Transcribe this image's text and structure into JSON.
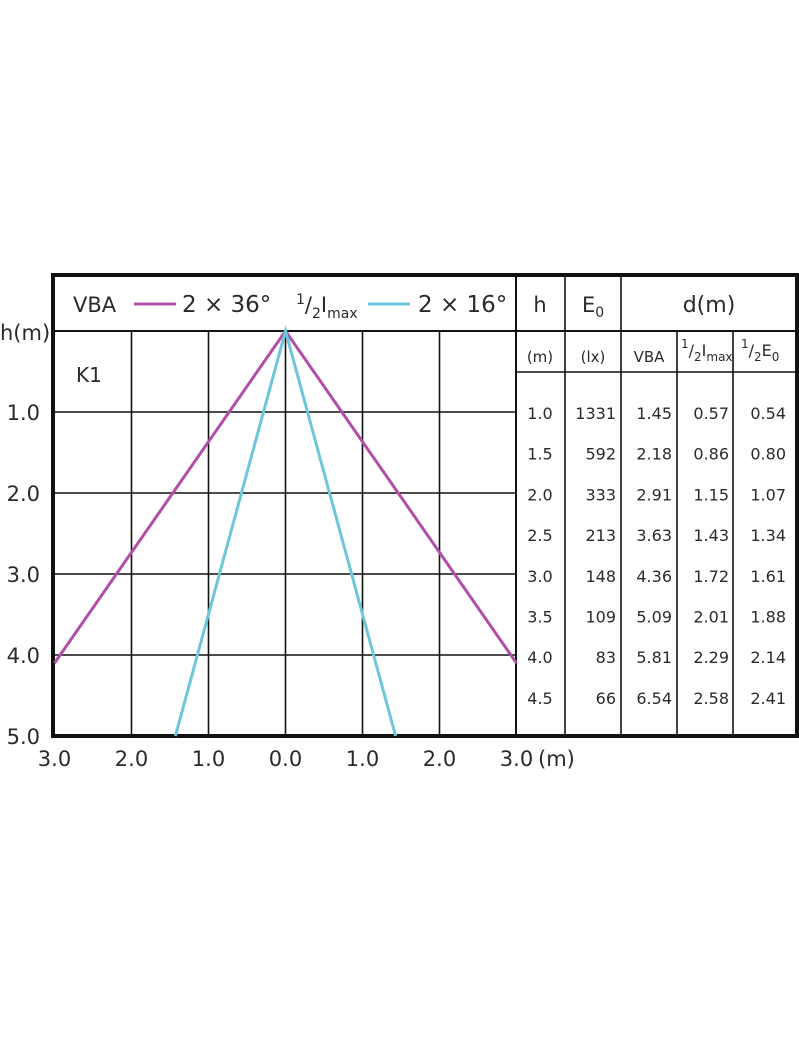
{
  "chart_data": {
    "type": "line",
    "panel_label": "K1",
    "legend": {
      "entries": [
        {
          "name": "VBA",
          "label": "2 × 36°",
          "color": "#b04fa6"
        },
        {
          "name": "1/2Imax",
          "name_parts": [
            "1",
            "/",
            "2",
            "I",
            "max"
          ],
          "label": "2 × 16°",
          "color": "#6ec6da"
        }
      ]
    },
    "y_axis": {
      "title": "h(m)",
      "ticks": [
        "1.0",
        "2.0",
        "3.0",
        "4.0",
        "5.0"
      ],
      "range": [
        0,
        5
      ],
      "inverted": true
    },
    "x_axis": {
      "unit": "(m)",
      "ticks": [
        "3.0",
        "2.0",
        "1.0",
        "0.0",
        "1.0",
        "2.0",
        "3.0"
      ],
      "range": [
        -3,
        3
      ]
    },
    "grid": true,
    "series": [
      {
        "name": "VBA",
        "color": "#b04fa6",
        "x": [
          -3.0,
          0.0,
          3.0
        ],
        "y": [
          4.1,
          0.0,
          4.1
        ]
      },
      {
        "name": "1/2Imax",
        "color": "#6ec6da",
        "x": [
          -1.43,
          0.0,
          1.43
        ],
        "y": [
          5.0,
          0.0,
          5.0
        ]
      }
    ],
    "table": {
      "headers": {
        "h": "h",
        "h_unit": "(m)",
        "e0": "E0",
        "e0_unit": "(lx)",
        "d": "d(m)",
        "vba": "VBA",
        "imax": "1/2Imax",
        "e0half": "1/2E0"
      },
      "rows": [
        {
          "h": "1.0",
          "e0": "1331",
          "vba": "1.45",
          "imax": "0.57",
          "e0half": "0.54"
        },
        {
          "h": "1.5",
          "e0": "592",
          "vba": "2.18",
          "imax": "0.86",
          "e0half": "0.80"
        },
        {
          "h": "2.0",
          "e0": "333",
          "vba": "2.91",
          "imax": "1.15",
          "e0half": "1.07"
        },
        {
          "h": "2.5",
          "e0": "213",
          "vba": "3.63",
          "imax": "1.43",
          "e0half": "1.34"
        },
        {
          "h": "3.0",
          "e0": "148",
          "vba": "4.36",
          "imax": "1.72",
          "e0half": "1.61"
        },
        {
          "h": "3.5",
          "e0": "109",
          "vba": "5.09",
          "imax": "2.01",
          "e0half": "1.88"
        },
        {
          "h": "4.0",
          "e0": "83",
          "vba": "5.81",
          "imax": "2.29",
          "e0half": "2.14"
        },
        {
          "h": "4.5",
          "e0": "66",
          "vba": "6.54",
          "imax": "2.58",
          "e0half": "2.41"
        }
      ]
    }
  }
}
